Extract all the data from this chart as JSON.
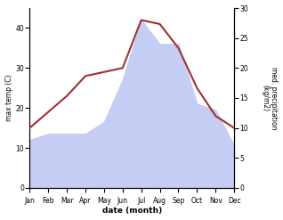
{
  "months": [
    "Jan",
    "Feb",
    "Mar",
    "Apr",
    "May",
    "Jun",
    "Jul",
    "Aug",
    "Sep",
    "Oct",
    "Nov",
    "Dec"
  ],
  "temp": [
    15,
    19,
    23,
    28,
    29,
    30,
    42,
    41,
    35,
    25,
    18,
    15
  ],
  "precip": [
    8,
    9,
    9,
    9,
    11,
    18,
    28,
    24,
    24,
    14,
    13,
    7
  ],
  "temp_color": "#a03030",
  "precip_color_fill": "#c5cdf5",
  "ylabel_left": "max temp (C)",
  "ylabel_right": "med. precipitation\n(kg/m2)",
  "xlabel": "date (month)",
  "ylim_left": [
    0,
    45
  ],
  "ylim_right": [
    0,
    30
  ],
  "yticks_left": [
    0,
    10,
    20,
    30,
    40
  ],
  "yticks_right": [
    0,
    5,
    10,
    15,
    20,
    25,
    30
  ],
  "bg_color": "#ffffff"
}
